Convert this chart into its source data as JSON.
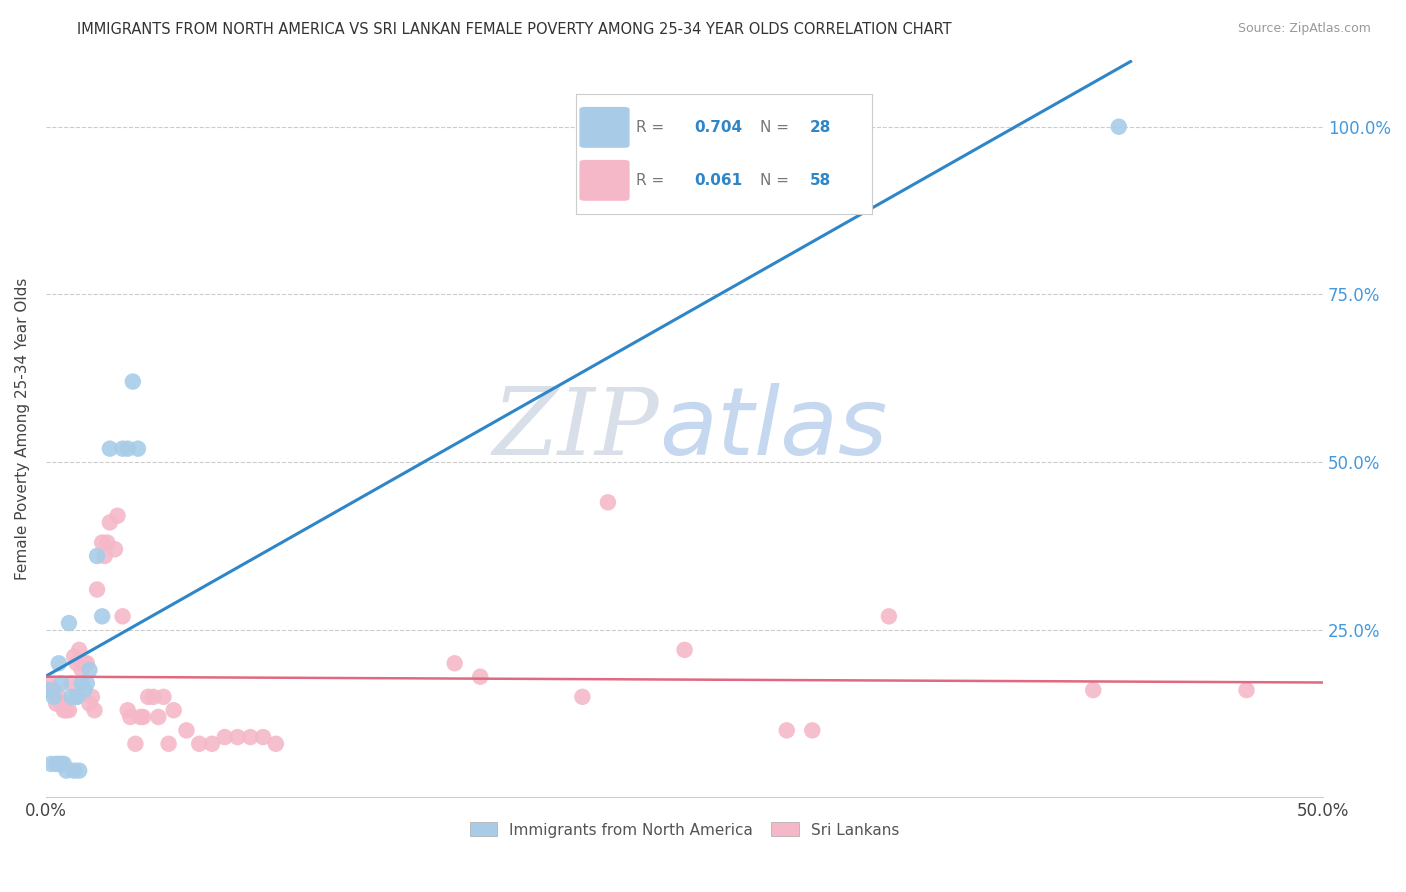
{
  "title": "IMMIGRANTS FROM NORTH AMERICA VS SRI LANKAN FEMALE POVERTY AMONG 25-34 YEAR OLDS CORRELATION CHART",
  "source": "Source: ZipAtlas.com",
  "ylabel": "Female Poverty Among 25-34 Year Olds",
  "xlim": [
    0.0,
    0.5
  ],
  "ylim": [
    0.0,
    1.1
  ],
  "xtick_labels": [
    "0.0%",
    "50.0%"
  ],
  "xtick_positions": [
    0.0,
    0.5
  ],
  "ytick_labels": [
    "25.0%",
    "50.0%",
    "75.0%",
    "100.0%"
  ],
  "ytick_positions": [
    0.25,
    0.5,
    0.75,
    1.0
  ],
  "legend1_R": "0.704",
  "legend1_N": "28",
  "legend2_R": "0.061",
  "legend2_N": "58",
  "blue_color": "#a8cce8",
  "blue_line_color": "#2e86c8",
  "pink_color": "#f5b8c8",
  "pink_line_color": "#e06880",
  "watermark": "ZIPatlas",
  "watermark_color": "#dde8f5",
  "blue_x": [
    0.001,
    0.002,
    0.003,
    0.004,
    0.005,
    0.005,
    0.006,
    0.006,
    0.007,
    0.008,
    0.009,
    0.01,
    0.011,
    0.012,
    0.012,
    0.013,
    0.014,
    0.015,
    0.016,
    0.017,
    0.02,
    0.022,
    0.025,
    0.03,
    0.032,
    0.034,
    0.036,
    0.42
  ],
  "blue_y": [
    0.16,
    0.05,
    0.15,
    0.05,
    0.05,
    0.2,
    0.17,
    0.05,
    0.05,
    0.04,
    0.26,
    0.15,
    0.04,
    0.15,
    0.15,
    0.04,
    0.17,
    0.16,
    0.17,
    0.19,
    0.36,
    0.27,
    0.52,
    0.52,
    0.52,
    0.62,
    0.52,
    1.0
  ],
  "pink_x": [
    0.001,
    0.001,
    0.002,
    0.003,
    0.003,
    0.004,
    0.005,
    0.006,
    0.007,
    0.008,
    0.009,
    0.01,
    0.011,
    0.012,
    0.013,
    0.014,
    0.015,
    0.016,
    0.017,
    0.018,
    0.019,
    0.02,
    0.022,
    0.023,
    0.024,
    0.025,
    0.027,
    0.028,
    0.03,
    0.032,
    0.033,
    0.035,
    0.037,
    0.038,
    0.04,
    0.042,
    0.044,
    0.046,
    0.048,
    0.05,
    0.055,
    0.06,
    0.065,
    0.07,
    0.075,
    0.08,
    0.085,
    0.09,
    0.16,
    0.17,
    0.21,
    0.22,
    0.25,
    0.29,
    0.3,
    0.33,
    0.41,
    0.47
  ],
  "pink_y": [
    0.17,
    0.16,
    0.16,
    0.16,
    0.16,
    0.14,
    0.15,
    0.14,
    0.13,
    0.13,
    0.13,
    0.17,
    0.21,
    0.2,
    0.22,
    0.19,
    0.2,
    0.2,
    0.14,
    0.15,
    0.13,
    0.31,
    0.38,
    0.36,
    0.38,
    0.41,
    0.37,
    0.42,
    0.27,
    0.13,
    0.12,
    0.08,
    0.12,
    0.12,
    0.15,
    0.15,
    0.12,
    0.15,
    0.08,
    0.13,
    0.1,
    0.08,
    0.08,
    0.09,
    0.09,
    0.09,
    0.09,
    0.08,
    0.2,
    0.18,
    0.15,
    0.44,
    0.22,
    0.1,
    0.1,
    0.27,
    0.16,
    0.16
  ]
}
